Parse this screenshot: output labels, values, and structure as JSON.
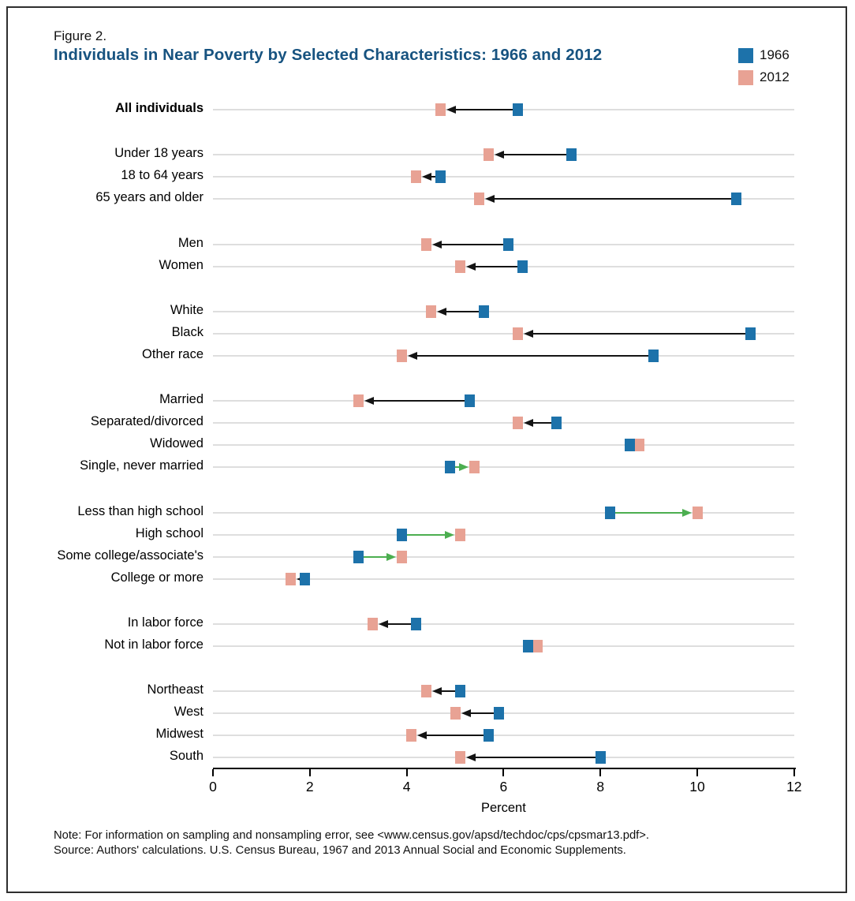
{
  "figure": {
    "label": "Figure 2.",
    "title": "Individuals in Near Poverty by Selected Characteristics: 1966 and 2012"
  },
  "legend": [
    {
      "label": "1966",
      "color": "#1d72aa"
    },
    {
      "label": "2012",
      "color": "#e8a294"
    }
  ],
  "colors": {
    "series_1966": "#1d72aa",
    "series_2012": "#e8a294",
    "arrow_decrease": "#141414",
    "arrow_increase": "#4cae50",
    "row_line": "#dedede",
    "title_blue": "#175380"
  },
  "notes": [
    "Note: For information on sampling and nonsampling error, see <www.census.gov/apsd/techdoc/cps/cpsmar13.pdf>.",
    "Source: Authors' calculations. U.S. Census Bureau, 1967 and 2013 Annual Social and Economic Supplements."
  ],
  "chart_data": {
    "type": "dumbbell",
    "series_names": [
      "1966",
      "2012"
    ],
    "xlabel": "Percent",
    "xlim": [
      0,
      12
    ],
    "xticks": [
      0,
      2,
      4,
      6,
      8,
      10,
      12
    ],
    "grid": "horizontal-row-lines",
    "legend_position": "top-right",
    "arrow_semantics": "arrow points from 1966 value to 2012 value; black = decrease, green = increase",
    "rows": [
      {
        "label": "All individuals",
        "bold": true,
        "group": 0,
        "v1966": 6.3,
        "v2012": 4.7,
        "arrow": "left-black"
      },
      {
        "label": "Under 18 years",
        "bold": false,
        "group": 1,
        "v1966": 7.4,
        "v2012": 5.7,
        "arrow": "left-black"
      },
      {
        "label": "18 to 64 years",
        "bold": false,
        "group": 1,
        "v1966": 4.7,
        "v2012": 4.2,
        "arrow": "left-black"
      },
      {
        "label": "65 years and older",
        "bold": false,
        "group": 1,
        "v1966": 10.8,
        "v2012": 5.5,
        "arrow": "left-black"
      },
      {
        "label": "Men",
        "bold": false,
        "group": 2,
        "v1966": 6.1,
        "v2012": 4.4,
        "arrow": "left-black"
      },
      {
        "label": "Women",
        "bold": false,
        "group": 2,
        "v1966": 6.4,
        "v2012": 5.1,
        "arrow": "left-black"
      },
      {
        "label": "White",
        "bold": false,
        "group": 3,
        "v1966": 5.6,
        "v2012": 4.5,
        "arrow": "left-black"
      },
      {
        "label": "Black",
        "bold": false,
        "group": 3,
        "v1966": 11.1,
        "v2012": 6.3,
        "arrow": "left-black"
      },
      {
        "label": "Other race",
        "bold": false,
        "group": 3,
        "v1966": 9.1,
        "v2012": 3.9,
        "arrow": "left-black"
      },
      {
        "label": "Married",
        "bold": false,
        "group": 4,
        "v1966": 5.3,
        "v2012": 3.0,
        "arrow": "left-black"
      },
      {
        "label": "Separated/divorced",
        "bold": false,
        "group": 4,
        "v1966": 7.1,
        "v2012": 6.3,
        "arrow": "left-black"
      },
      {
        "label": "Widowed",
        "bold": false,
        "group": 4,
        "v1966": 8.6,
        "v2012": 8.8,
        "arrow": "none"
      },
      {
        "label": "Single, never married",
        "bold": false,
        "group": 4,
        "v1966": 4.9,
        "v2012": 5.4,
        "arrow": "right-green"
      },
      {
        "label": "Less than high school",
        "bold": false,
        "group": 5,
        "v1966": 8.2,
        "v2012": 10.0,
        "arrow": "right-green"
      },
      {
        "label": "High school",
        "bold": false,
        "group": 5,
        "v1966": 3.9,
        "v2012": 5.1,
        "arrow": "right-green"
      },
      {
        "label": "Some college/associate's",
        "bold": false,
        "group": 5,
        "v1966": 3.0,
        "v2012": 3.9,
        "arrow": "right-green"
      },
      {
        "label": "College or more",
        "bold": false,
        "group": 5,
        "v1966": 1.9,
        "v2012": 1.6,
        "arrow": "left-black"
      },
      {
        "label": "In labor force",
        "bold": false,
        "group": 6,
        "v1966": 4.2,
        "v2012": 3.3,
        "arrow": "left-black"
      },
      {
        "label": "Not in labor force",
        "bold": false,
        "group": 6,
        "v1966": 6.5,
        "v2012": 6.7,
        "arrow": "none"
      },
      {
        "label": "Northeast",
        "bold": false,
        "group": 7,
        "v1966": 5.1,
        "v2012": 4.4,
        "arrow": "left-black"
      },
      {
        "label": "West",
        "bold": false,
        "group": 7,
        "v1966": 5.9,
        "v2012": 5.0,
        "arrow": "left-black"
      },
      {
        "label": "Midwest",
        "bold": false,
        "group": 7,
        "v1966": 5.7,
        "v2012": 4.1,
        "arrow": "left-black"
      },
      {
        "label": "South",
        "bold": false,
        "group": 7,
        "v1966": 8.0,
        "v2012": 5.1,
        "arrow": "left-black"
      }
    ]
  }
}
